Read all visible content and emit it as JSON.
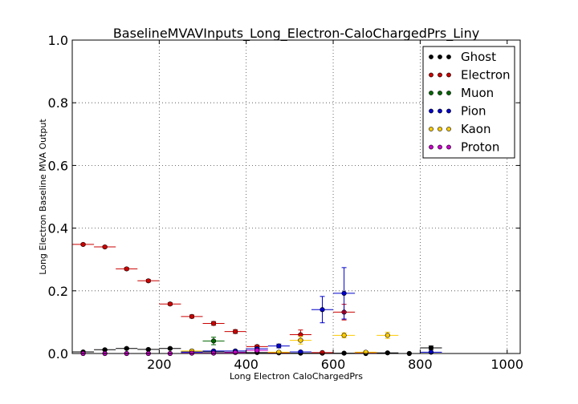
{
  "chart_data": {
    "type": "scatter",
    "title": "BaselineMVAVInputs_Long_Electron-CaloChargedPrs_Liny",
    "xlabel": "Long Electron CaloChargedPrs",
    "ylabel": "Long Electron Baseline MVA Output",
    "xlim": [
      0,
      1030
    ],
    "ylim": [
      0,
      1.0
    ],
    "x_ticks": [
      "200",
      "400",
      "600",
      "800",
      "1000"
    ],
    "y_ticks": [
      "0.0",
      "0.2",
      "0.4",
      "0.6",
      "0.8",
      "1.0"
    ],
    "grid": true,
    "legend_position": "top-right",
    "bin_halfwidth": 25,
    "series": [
      {
        "name": "Ghost",
        "color": "#000000",
        "points": [
          {
            "x": 25,
            "y": 0.005,
            "err": 0.002
          },
          {
            "x": 75,
            "y": 0.012,
            "err": 0.002
          },
          {
            "x": 125,
            "y": 0.016,
            "err": 0.002
          },
          {
            "x": 175,
            "y": 0.013,
            "err": 0.002
          },
          {
            "x": 225,
            "y": 0.016,
            "err": 0.002
          },
          {
            "x": 275,
            "y": 0.007,
            "err": 0.002
          },
          {
            "x": 325,
            "y": 0.005,
            "err": 0.002
          },
          {
            "x": 375,
            "y": 0.004,
            "err": 0.002
          },
          {
            "x": 425,
            "y": 0.003,
            "err": 0.002
          },
          {
            "x": 475,
            "y": 0.002,
            "err": 0.002
          },
          {
            "x": 525,
            "y": 0.001,
            "err": 0.001
          },
          {
            "x": 575,
            "y": 0.001,
            "err": 0.001
          },
          {
            "x": 625,
            "y": 0.001,
            "err": 0.001
          },
          {
            "x": 675,
            "y": 0.0,
            "err": 0.001
          },
          {
            "x": 725,
            "y": 0.002,
            "err": 0.002
          },
          {
            "x": 775,
            "y": 0.0,
            "err": 0.001
          },
          {
            "x": 825,
            "y": 0.018,
            "err": 0.006
          }
        ]
      },
      {
        "name": "Electron",
        "color": "#cc0000",
        "points": [
          {
            "x": 25,
            "y": 0.348,
            "err": 0.003
          },
          {
            "x": 75,
            "y": 0.34,
            "err": 0.003
          },
          {
            "x": 125,
            "y": 0.27,
            "err": 0.004
          },
          {
            "x": 175,
            "y": 0.232,
            "err": 0.004
          },
          {
            "x": 225,
            "y": 0.158,
            "err": 0.004
          },
          {
            "x": 275,
            "y": 0.118,
            "err": 0.005
          },
          {
            "x": 325,
            "y": 0.096,
            "err": 0.006
          },
          {
            "x": 375,
            "y": 0.07,
            "err": 0.006
          },
          {
            "x": 425,
            "y": 0.022,
            "err": 0.005
          },
          {
            "x": 475,
            "y": 0.003,
            "err": 0.002
          },
          {
            "x": 525,
            "y": 0.06,
            "err": 0.015
          },
          {
            "x": 575,
            "y": 0.003,
            "err": 0.002
          },
          {
            "x": 625,
            "y": 0.132,
            "err": 0.025
          },
          {
            "x": 675,
            "y": 0.003,
            "err": 0.002
          }
        ]
      },
      {
        "name": "Muon",
        "color": "#006600",
        "points": [
          {
            "x": 325,
            "y": 0.04,
            "err": 0.012
          }
        ]
      },
      {
        "name": "Pion",
        "color": "#0000cc",
        "points": [
          {
            "x": 275,
            "y": 0.004,
            "err": 0.002
          },
          {
            "x": 325,
            "y": 0.008,
            "err": 0.002
          },
          {
            "x": 375,
            "y": 0.008,
            "err": 0.003
          },
          {
            "x": 425,
            "y": 0.015,
            "err": 0.004
          },
          {
            "x": 475,
            "y": 0.024,
            "err": 0.006
          },
          {
            "x": 525,
            "y": 0.005,
            "err": 0.003
          },
          {
            "x": 575,
            "y": 0.14,
            "err": 0.042
          },
          {
            "x": 625,
            "y": 0.192,
            "err": 0.082
          },
          {
            "x": 825,
            "y": 0.004,
            "err": 0.002
          }
        ]
      },
      {
        "name": "Kaon",
        "color": "#ffcc00",
        "points": [
          {
            "x": 275,
            "y": 0.008,
            "err": 0.003
          },
          {
            "x": 475,
            "y": 0.004,
            "err": 0.003
          },
          {
            "x": 525,
            "y": 0.042,
            "err": 0.012
          },
          {
            "x": 625,
            "y": 0.058,
            "err": 0.008
          },
          {
            "x": 675,
            "y": 0.004,
            "err": 0.003
          },
          {
            "x": 725,
            "y": 0.058,
            "err": 0.01
          }
        ]
      },
      {
        "name": "Proton",
        "color": "#cc00cc",
        "points": [
          {
            "x": 25,
            "y": 0.0,
            "err": 0.001
          },
          {
            "x": 75,
            "y": 0.0,
            "err": 0.001
          },
          {
            "x": 125,
            "y": 0.0,
            "err": 0.001
          },
          {
            "x": 175,
            "y": 0.0,
            "err": 0.001
          },
          {
            "x": 225,
            "y": 0.0,
            "err": 0.001
          },
          {
            "x": 275,
            "y": 0.001,
            "err": 0.001
          },
          {
            "x": 325,
            "y": 0.001,
            "err": 0.001
          },
          {
            "x": 375,
            "y": 0.003,
            "err": 0.002
          },
          {
            "x": 425,
            "y": 0.01,
            "err": 0.004
          }
        ]
      }
    ]
  }
}
